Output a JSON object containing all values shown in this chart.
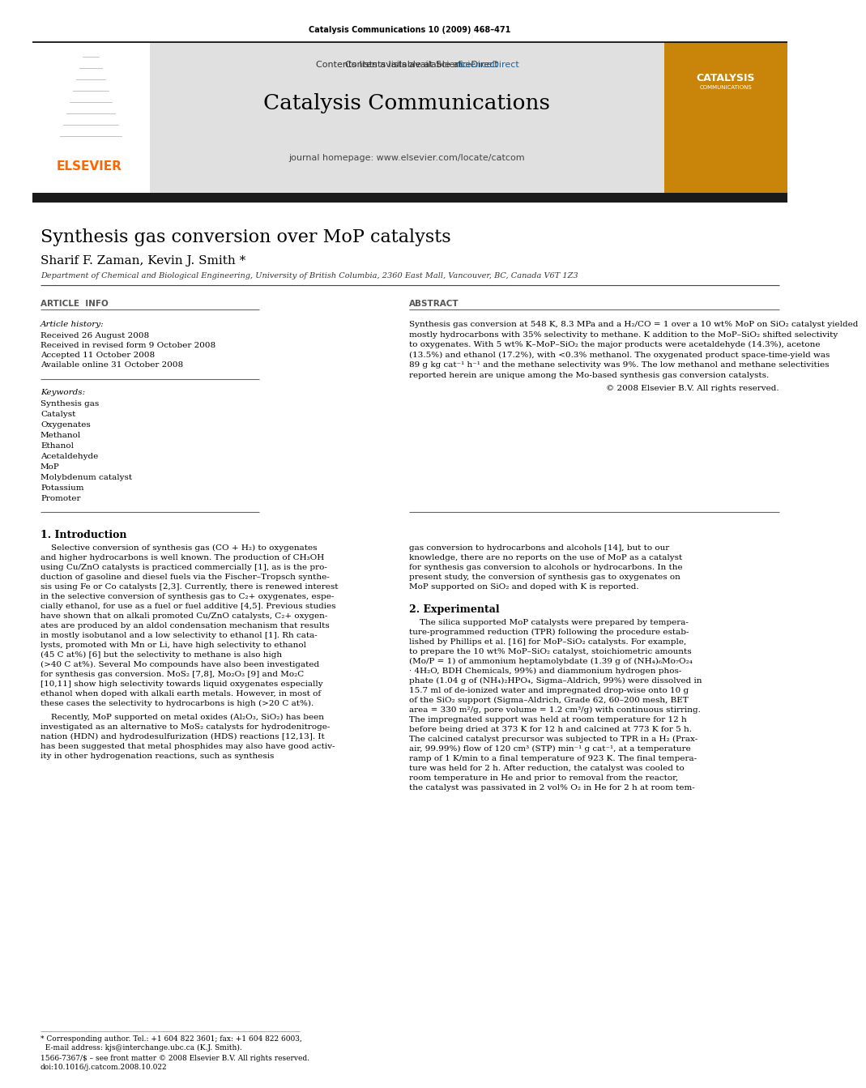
{
  "page_title": "Catalysis Communications 10 (2009) 468–471",
  "journal_name": "Catalysis Communications",
  "journal_homepage": "journal homepage: www.elsevier.com/locate/catcom",
  "contents_line": "Contents lists available at ",
  "sciencedirect": "ScienceDirect",
  "article_title": "Synthesis gas conversion over MoP catalysts",
  "authors": "Sharif F. Zaman, Kevin J. Smith *",
  "affiliation": "Department of Chemical and Biological Engineering, University of British Columbia, 2360 East Mall, Vancouver, BC, Canada V6T 1Z3",
  "article_info_header": "ARTICLE  INFO",
  "abstract_header": "ABSTRACT",
  "article_history_label": "Article history:",
  "received": "Received 26 August 2008",
  "received_revised": "Received in revised form 9 October 2008",
  "accepted": "Accepted 11 October 2008",
  "available": "Available online 31 October 2008",
  "keywords_label": "Keywords:",
  "keywords": [
    "Synthesis gas",
    "Catalyst",
    "Oxygenates",
    "Methanol",
    "Ethanol",
    "Acetaldehyde",
    "MoP",
    "Molybdenum catalyst",
    "Potassium",
    "Promoter"
  ],
  "abstract_lines": [
    "Synthesis gas conversion at 548 K, 8.3 MPa and a H₂/CO = 1 over a 10 wt% MoP on SiO₂ catalyst yielded",
    "mostly hydrocarbons with 35% selectivity to methane. K addition to the MoP–SiO₂ shifted selectivity",
    "to oxygenates. With 5 wt% K–MoP–SiO₂ the major products were acetaldehyde (14.3%), acetone",
    "(13.5%) and ethanol (17.2%), with <0.3% methanol. The oxygenated product space-time-yield was",
    "89 g kg cat⁻¹ h⁻¹ and the methane selectivity was 9%. The low methanol and methane selectivities",
    "reported herein are unique among the Mo-based synthesis gas conversion catalysts."
  ],
  "copyright": "© 2008 Elsevier B.V. All rights reserved.",
  "intro_header": "1. Introduction",
  "intro_left_lines": [
    "    Selective conversion of synthesis gas (CO + H₂) to oxygenates",
    "and higher hydrocarbons is well known. The production of CH₃OH",
    "using Cu/ZnO catalysts is practiced commercially [1], as is the pro-",
    "duction of gasoline and diesel fuels via the Fischer–Tropsch synthe-",
    "sis using Fe or Co catalysts [2,3]. Currently, there is renewed interest",
    "in the selective conversion of synthesis gas to C₂+ oxygenates, espe-",
    "cially ethanol, for use as a fuel or fuel additive [4,5]. Previous studies",
    "have shown that on alkali promoted Cu/ZnO catalysts, C₂+ oxygen-",
    "ates are produced by an aldol condensation mechanism that results",
    "in mostly isobutanol and a low selectivity to ethanol [1]. Rh cata-",
    "lysts, promoted with Mn or Li, have high selectivity to ethanol",
    "(45 C at%) [6] but the selectivity to methane is also high",
    "(>40 C at%). Several Mo compounds have also been investigated",
    "for synthesis gas conversion. MoS₂ [7,8], Mo₂O₃ [9] and Mo₂C",
    "[10,11] show high selectivity towards liquid oxygenates especially",
    "ethanol when doped with alkali earth metals. However, in most of",
    "these cases the selectivity to hydrocarbons is high (>20 C at%)."
  ],
  "intro_left_para2": [
    "    Recently, MoP supported on metal oxides (Al₂O₃, SiO₂) has been",
    "investigated as an alternative to MoS₂ catalysts for hydrodenitroge-",
    "nation (HDN) and hydrodesulfurization (HDS) reactions [12,13]. It",
    "has been suggested that metal phosphides may also have good activ-",
    "ity in other hydrogenation reactions, such as synthesis"
  ],
  "intro_right_lines": [
    "gas conversion to hydrocarbons and alcohols [14], but to our",
    "knowledge, there are no reports on the use of MoP as a catalyst",
    "for synthesis gas conversion to alcohols or hydrocarbons. In the",
    "present study, the conversion of synthesis gas to oxygenates on",
    "MoP supported on SiO₂ and doped with K is reported."
  ],
  "experimental_header": "2. Experimental",
  "exp_lines": [
    "    The silica supported MoP catalysts were prepared by tempera-",
    "ture-programmed reduction (TPR) following the procedure estab-",
    "lished by Phillips et al. [16] for MoP–SiO₂ catalysts. For example,",
    "to prepare the 10 wt% MoP–SiO₂ catalyst, stoichiometric amounts",
    "(Mo/P = 1) of ammonium heptamolybdate (1.39 g of (NH₄)₆Mo₇O₂₄",
    "· 4H₂O, BDH Chemicals, 99%) and diammonium hydrogen phos-",
    "phate (1.04 g of (NH₄)₂HPO₄, Sigma–Aldrich, 99%) were dissolved in",
    "15.7 ml of de-ionized water and impregnated drop-wise onto 10 g",
    "of the SiO₂ support (Sigma–Aldrich, Grade 62, 60–200 mesh, BET",
    "area = 330 m²/g, pore volume = 1.2 cm³/g) with continuous stirring.",
    "The impregnated support was held at room temperature for 12 h",
    "before being dried at 373 K for 12 h and calcined at 773 K for 5 h.",
    "The calcined catalyst precursor was subjected to TPR in a H₂ (Prax-",
    "air, 99.99%) flow of 120 cm³ (STP) min⁻¹ g cat⁻¹, at a temperature",
    "ramp of 1 K/min to a final temperature of 923 K. The final tempera-",
    "ture was held for 2 h. After reduction, the catalyst was cooled to",
    "room temperature in He and prior to removal from the reactor,",
    "the catalyst was passivated in 2 vol% O₂ in He for 2 h at room tem-"
  ],
  "footnote1": "* Corresponding author. Tel.: +1 604 822 3601; fax: +1 604 822 6003,",
  "footnote2": "  E-mail address: kjs@interchange.ubc.ca (K.J. Smith).",
  "issn_line": "1566-7367/$ – see front matter © 2008 Elsevier B.V. All rights reserved.",
  "doi_line": "doi:10.1016/j.catcom.2008.10.022",
  "header_bg": "#e0e0e0",
  "elsevier_orange": "#FF6600",
  "sd_blue": "#1565a0",
  "dark_bar": "#1a1a1a"
}
